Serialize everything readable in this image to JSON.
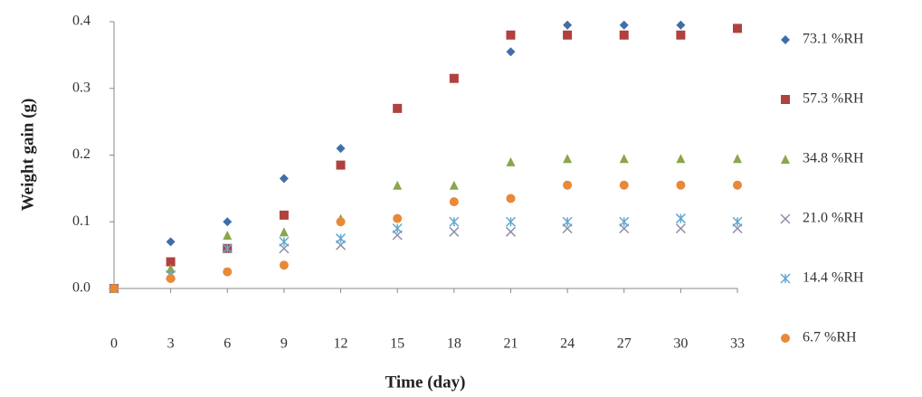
{
  "chart_data": {
    "type": "scatter",
    "x_label": "Time (day)",
    "y_label": "Weight gain (g)",
    "x": [
      0,
      3,
      6,
      9,
      12,
      15,
      18,
      21,
      24,
      27,
      30,
      33
    ],
    "xlim": [
      0,
      33
    ],
    "xticks": [
      0,
      3,
      6,
      9,
      12,
      15,
      18,
      21,
      24,
      27,
      30,
      33
    ],
    "ylim": [
      0,
      0.4
    ],
    "yticks": [
      {
        "value": 0,
        "label": "0.0"
      },
      0.1,
      0.2,
      0.3,
      0.4
    ],
    "grid": false,
    "legend": "right",
    "series": [
      {
        "name": "73.1 %RH",
        "color": "#3f6ea8",
        "marker": "diamond",
        "values": [
          0,
          0.07,
          0.1,
          0.165,
          0.21,
          0.27,
          0.315,
          0.355,
          0.395,
          0.395,
          0.395,
          0.39
        ]
      },
      {
        "name": "57.3 %RH",
        "color": "#b0413e",
        "marker": "square",
        "values": [
          0,
          0.04,
          0.06,
          0.11,
          0.185,
          0.27,
          0.315,
          0.38,
          0.38,
          0.38,
          0.38,
          0.39
        ]
      },
      {
        "name": "34.8 %RH",
        "color": "#8aa64a",
        "marker": "triangle",
        "values": [
          0,
          0.03,
          0.08,
          0.085,
          0.105,
          0.155,
          0.155,
          0.19,
          0.195,
          0.195,
          0.195,
          0.195
        ]
      },
      {
        "name": "21.0 %RH",
        "color": "#8e8ea8",
        "marker": "x",
        "values": [
          0,
          0.02,
          0.06,
          0.06,
          0.065,
          0.08,
          0.085,
          0.085,
          0.09,
          0.09,
          0.09,
          0.09
        ]
      },
      {
        "name": "14.4 %RH",
        "color": "#5fa8d3",
        "marker": "star",
        "values": [
          0,
          0.02,
          0.06,
          0.07,
          0.075,
          0.09,
          0.1,
          0.1,
          0.1,
          0.1,
          0.105,
          0.1
        ]
      },
      {
        "name": "6.7 %RH",
        "color": "#e8893a",
        "marker": "circle",
        "values": [
          0,
          0.015,
          0.025,
          0.035,
          0.1,
          0.105,
          0.13,
          0.135,
          0.155,
          0.155,
          0.155,
          0.155
        ]
      }
    ]
  }
}
